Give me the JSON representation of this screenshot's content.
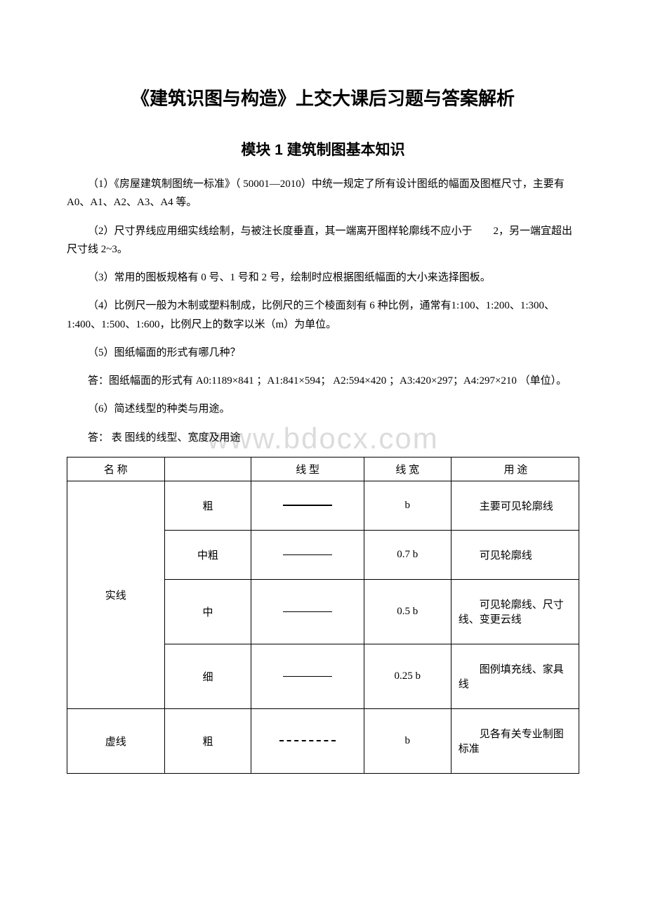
{
  "watermark": "www.bdocx.com",
  "title": "《建筑识图与构造》上交大课后习题与答案解析",
  "subtitle": "模块 1  建筑制图基本知识",
  "paragraphs": {
    "p1": "（1）《房屋建筑制图统一标准》（ 50001—2010）中统一规定了所有设计图纸的幅面及图框尺寸，主要有 A0、A1、A2、A3、A4 等。",
    "p2": "（2）尺寸界线应用细实线绘制，与被注长度垂直，其一端离开图样轮廓线不应小于　　2，另一端宜超出尺寸线 2~3。",
    "p3": "（3）常用的图板规格有 0 号、1 号和 2 号，绘制时应根据图纸幅面的大小来选择图板。",
    "p4": "（4）比例尺一般为木制或塑料制成，比例尺的三个棱面刻有 6 种比例，通常有1:100、1:200、1:300、1:400、1:500、1:600，比例尺上的数字以米（m）为单位。",
    "p5": "（5）图纸幅面的形式有哪几种？",
    "ans5": "答：图纸幅面的形式有 A0:1189×841 ；A1:841×594；  A2:594×420 ；A3:420×297；A4:297×210 （单位）。",
    "p6": "（6）简述线型的种类与用途。",
    "ans6": "答：  表 图线的线型、宽度及用途"
  },
  "table": {
    "header": {
      "name": "名 称",
      "type": "线 型",
      "width": "线 宽",
      "usage": "用  途"
    },
    "rows": [
      {
        "name": "实线",
        "rowspan": 4,
        "cells": [
          {
            "weight": "粗",
            "line_class": "line-thick",
            "width": "b",
            "usage": "主要可见轮廓线"
          },
          {
            "weight": "中粗",
            "line_class": "line-medium",
            "width": "0.7 b",
            "usage": "可见轮廓线"
          },
          {
            "weight": "中",
            "line_class": "line-thin",
            "width": "0.5 b",
            "usage": "可见轮廓线、尺寸线、变更云线"
          },
          {
            "weight": "细",
            "line_class": "line-hair",
            "width": "0.25 b",
            "usage": "图例填充线、家具线"
          }
        ]
      },
      {
        "name": "虚线",
        "rowspan": 1,
        "cells": [
          {
            "weight": "粗",
            "line_class": "line-dashed",
            "width": "b",
            "usage": "见各有关专业制图标准"
          }
        ]
      }
    ]
  }
}
